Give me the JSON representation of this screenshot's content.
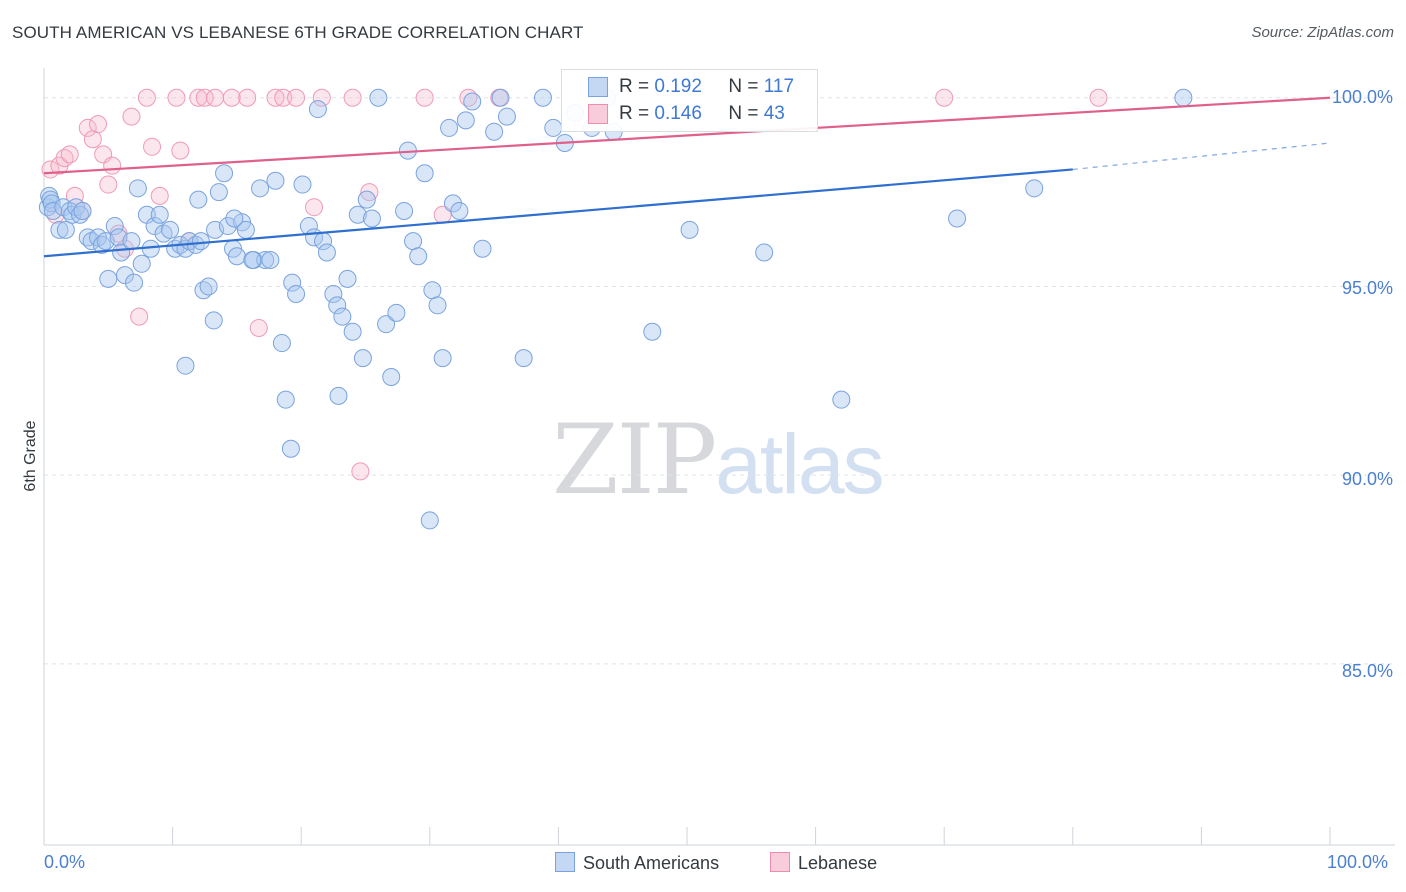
{
  "title": "SOUTH AMERICAN VS LEBANESE 6TH GRADE CORRELATION CHART",
  "source": "Source: ZipAtlas.com",
  "watermark": {
    "zip": "ZIP",
    "atlas": "atlas"
  },
  "colors": {
    "south_american": "#a9c7ef",
    "south_american_line": "#2f6fcf",
    "lebanese": "#f5b8cc",
    "lebanese_line": "#e0608c",
    "tick_text": "#4a7fd1",
    "grid": "#dfe3e8"
  },
  "legend_stats": [
    {
      "r_label": "R =",
      "r_value": "0.192",
      "n_label": "N =",
      "n_value": "117"
    },
    {
      "r_label": "R =",
      "r_value": "0.146",
      "n_label": "N =",
      "n_value": "43"
    }
  ],
  "legend_bottom": [
    "South Americans",
    "Lebanese"
  ],
  "chart_data": {
    "type": "scatter",
    "title": "SOUTH AMERICAN VS LEBANESE 6TH GRADE CORRELATION CHART",
    "xlabel": "",
    "ylabel": "6th Grade",
    "xlim": [
      0,
      100
    ],
    "ylim": [
      80.2,
      101.0
    ],
    "x_tick_labels": [
      "0.0%",
      "100.0%"
    ],
    "y_ticks": [
      100,
      95,
      90,
      85
    ],
    "y_tick_labels": [
      "100.0%",
      "95.0%",
      "90.0%",
      "85.0%"
    ],
    "grid": true,
    "legend": "top-center",
    "series": [
      {
        "name": "South Americans",
        "r": 0.192,
        "n": 117,
        "trend": {
          "x0": 0,
          "y0": 95.8,
          "x1": 80,
          "y1": 98.1,
          "dashed_to_x": 100,
          "dashed_to_y": 98.8
        },
        "points": [
          [
            0.3,
            97.1
          ],
          [
            0.4,
            97.4
          ],
          [
            0.5,
            97.3
          ],
          [
            0.6,
            97.2
          ],
          [
            0.7,
            97.0
          ],
          [
            1.2,
            96.5
          ],
          [
            1.5,
            97.1
          ],
          [
            1.7,
            96.5
          ],
          [
            2.0,
            97.0
          ],
          [
            2.2,
            96.9
          ],
          [
            2.5,
            97.1
          ],
          [
            2.8,
            96.9
          ],
          [
            3.0,
            97.0
          ],
          [
            3.4,
            96.3
          ],
          [
            3.7,
            96.2
          ],
          [
            4.2,
            96.3
          ],
          [
            4.5,
            96.1
          ],
          [
            4.8,
            96.2
          ],
          [
            5.0,
            95.2
          ],
          [
            5.5,
            96.6
          ],
          [
            5.8,
            96.3
          ],
          [
            6.0,
            95.9
          ],
          [
            6.3,
            95.3
          ],
          [
            6.8,
            96.2
          ],
          [
            7.0,
            95.1
          ],
          [
            7.3,
            97.6
          ],
          [
            7.6,
            95.6
          ],
          [
            8.0,
            96.9
          ],
          [
            8.3,
            96.0
          ],
          [
            8.6,
            96.6
          ],
          [
            9.0,
            96.9
          ],
          [
            9.3,
            96.4
          ],
          [
            9.8,
            96.5
          ],
          [
            10.2,
            96.0
          ],
          [
            10.6,
            96.1
          ],
          [
            11.0,
            96.0
          ],
          [
            11.3,
            96.2
          ],
          [
            11.8,
            96.1
          ],
          [
            12.0,
            97.3
          ],
          [
            12.4,
            94.9
          ],
          [
            12.8,
            95.0
          ],
          [
            13.3,
            96.5
          ],
          [
            13.6,
            97.5
          ],
          [
            14.0,
            98.0
          ],
          [
            14.3,
            96.6
          ],
          [
            14.7,
            96.0
          ],
          [
            15.0,
            95.8
          ],
          [
            15.4,
            96.7
          ],
          [
            15.7,
            96.5
          ],
          [
            16.3,
            95.7
          ],
          [
            16.8,
            97.6
          ],
          [
            17.2,
            95.7
          ],
          [
            17.6,
            95.7
          ],
          [
            18.0,
            97.8
          ],
          [
            18.5,
            93.5
          ],
          [
            18.8,
            92.0
          ],
          [
            19.3,
            95.1
          ],
          [
            19.6,
            94.8
          ],
          [
            20.1,
            97.7
          ],
          [
            20.6,
            96.6
          ],
          [
            21.0,
            96.3
          ],
          [
            21.3,
            99.7
          ],
          [
            21.7,
            96.2
          ],
          [
            22.0,
            95.9
          ],
          [
            22.5,
            94.8
          ],
          [
            22.8,
            94.5
          ],
          [
            23.2,
            94.2
          ],
          [
            23.6,
            95.2
          ],
          [
            24.0,
            93.8
          ],
          [
            24.4,
            96.9
          ],
          [
            24.8,
            93.1
          ],
          [
            25.1,
            97.3
          ],
          [
            25.5,
            96.8
          ],
          [
            26.0,
            100.0
          ],
          [
            26.6,
            94.0
          ],
          [
            27.0,
            92.6
          ],
          [
            27.4,
            94.3
          ],
          [
            28.0,
            97.0
          ],
          [
            28.3,
            98.6
          ],
          [
            28.7,
            96.2
          ],
          [
            29.1,
            95.8
          ],
          [
            29.6,
            98.0
          ],
          [
            30.2,
            94.9
          ],
          [
            30.6,
            94.5
          ],
          [
            31.0,
            93.1
          ],
          [
            31.5,
            99.2
          ],
          [
            31.8,
            97.2
          ],
          [
            32.3,
            97.0
          ],
          [
            32.8,
            99.4
          ],
          [
            33.3,
            99.9
          ],
          [
            34.1,
            96.0
          ],
          [
            35.0,
            99.1
          ],
          [
            35.5,
            100.0
          ],
          [
            36.0,
            99.5
          ],
          [
            37.3,
            93.1
          ],
          [
            38.8,
            100.0
          ],
          [
            39.6,
            99.2
          ],
          [
            40.5,
            98.8
          ],
          [
            41.3,
            99.6
          ],
          [
            42.6,
            99.2
          ],
          [
            43.8,
            100.0
          ],
          [
            44.3,
            99.1
          ],
          [
            47.3,
            93.8
          ],
          [
            50.2,
            96.5
          ],
          [
            56.0,
            95.9
          ],
          [
            62.0,
            92.0
          ],
          [
            71.0,
            96.8
          ],
          [
            77.0,
            97.6
          ],
          [
            88.6,
            100.0
          ],
          [
            12.2,
            96.2
          ],
          [
            11.0,
            92.9
          ],
          [
            14.8,
            96.8
          ],
          [
            16.2,
            95.7
          ],
          [
            13.2,
            94.1
          ],
          [
            22.9,
            92.1
          ],
          [
            19.2,
            90.7
          ],
          [
            30.0,
            88.8
          ]
        ]
      },
      {
        "name": "Lebanese",
        "r": 0.146,
        "n": 43,
        "trend": {
          "x0": 0,
          "y0": 98.0,
          "x1": 100,
          "y1": 100.0
        },
        "points": [
          [
            0.5,
            98.1
          ],
          [
            0.9,
            96.9
          ],
          [
            1.2,
            98.2
          ],
          [
            1.6,
            98.4
          ],
          [
            2.0,
            98.5
          ],
          [
            2.4,
            97.4
          ],
          [
            3.0,
            97.0
          ],
          [
            3.4,
            99.2
          ],
          [
            3.8,
            98.9
          ],
          [
            4.2,
            99.3
          ],
          [
            4.6,
            98.5
          ],
          [
            5.0,
            97.7
          ],
          [
            5.3,
            98.2
          ],
          [
            5.8,
            96.4
          ],
          [
            6.3,
            96.0
          ],
          [
            6.8,
            99.5
          ],
          [
            7.4,
            94.2
          ],
          [
            8.0,
            100.0
          ],
          [
            8.4,
            98.7
          ],
          [
            9.0,
            97.4
          ],
          [
            10.3,
            100.0
          ],
          [
            10.6,
            98.6
          ],
          [
            11.3,
            96.2
          ],
          [
            12.0,
            100.0
          ],
          [
            12.5,
            100.0
          ],
          [
            13.3,
            100.0
          ],
          [
            14.6,
            100.0
          ],
          [
            15.8,
            100.0
          ],
          [
            16.7,
            93.9
          ],
          [
            18.0,
            100.0
          ],
          [
            18.6,
            100.0
          ],
          [
            19.6,
            100.0
          ],
          [
            21.0,
            97.1
          ],
          [
            21.6,
            100.0
          ],
          [
            24.0,
            100.0
          ],
          [
            25.3,
            97.5
          ],
          [
            24.6,
            90.1
          ],
          [
            29.6,
            100.0
          ],
          [
            31.0,
            96.9
          ],
          [
            33.0,
            100.0
          ],
          [
            35.4,
            100.0
          ],
          [
            70.0,
            100.0
          ],
          [
            82.0,
            100.0
          ]
        ]
      }
    ]
  }
}
